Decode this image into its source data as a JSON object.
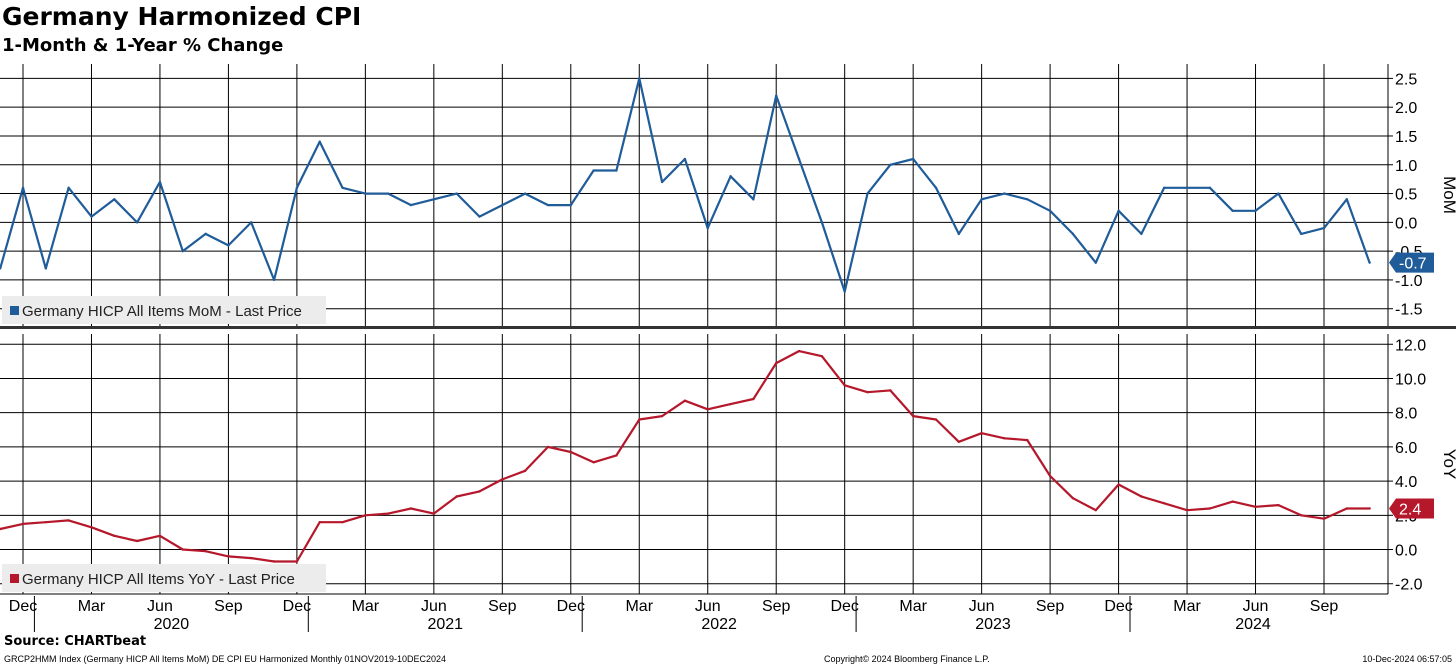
{
  "header": {
    "title": "Germany Harmonized CPI",
    "subtitle": "1-Month & 1-Year % Change"
  },
  "footer": {
    "source": "Source: CHARTbeat",
    "ticker_info": "GRCP2HMM Index (Germany HICP All Items MoM) DE CPI EU Harmonized  Monthly 01NOV2019-10DEC2024",
    "copyright": "Copyright© 2024 Bloomberg Finance L.P.",
    "timestamp": "10-Dec-2024 06:57:05"
  },
  "colors": {
    "mom": "#1f5c99",
    "yoy": "#b5172b",
    "grid": "#000000"
  },
  "chart_data": [
    {
      "type": "line",
      "panel": "top",
      "axis_label": "MoM",
      "legend": "Germany HICP All Items MoM - Last Price",
      "last_value_label": "-0.7",
      "ylim": [
        -1.8,
        2.75
      ],
      "yticks": [
        2.5,
        2.0,
        1.5,
        1.0,
        0.5,
        0.0,
        -0.5,
        -1.0,
        -1.5
      ],
      "ytick_labels": [
        "2.5",
        "2.0",
        "1.5",
        "1.0",
        "0.5",
        "0.0",
        "-0.5",
        "-1.0",
        "-1.5"
      ],
      "x": [
        "2019-11",
        "2019-12",
        "2020-01",
        "2020-02",
        "2020-03",
        "2020-04",
        "2020-05",
        "2020-06",
        "2020-07",
        "2020-08",
        "2020-09",
        "2020-10",
        "2020-11",
        "2020-12",
        "2021-01",
        "2021-02",
        "2021-03",
        "2021-04",
        "2021-05",
        "2021-06",
        "2021-07",
        "2021-08",
        "2021-09",
        "2021-10",
        "2021-11",
        "2021-12",
        "2022-01",
        "2022-02",
        "2022-03",
        "2022-04",
        "2022-05",
        "2022-06",
        "2022-07",
        "2022-08",
        "2022-09",
        "2022-10",
        "2022-11",
        "2022-12",
        "2023-01",
        "2023-02",
        "2023-03",
        "2023-04",
        "2023-05",
        "2023-06",
        "2023-07",
        "2023-08",
        "2023-09",
        "2023-10",
        "2023-11",
        "2023-12",
        "2024-01",
        "2024-02",
        "2024-03",
        "2024-04",
        "2024-05",
        "2024-06",
        "2024-07",
        "2024-08",
        "2024-09",
        "2024-10",
        "2024-11"
      ],
      "values": [
        -0.8,
        0.6,
        -0.8,
        0.6,
        0.1,
        0.4,
        0.0,
        0.7,
        -0.5,
        -0.2,
        -0.4,
        0.0,
        -1.0,
        0.6,
        1.4,
        0.6,
        0.5,
        0.5,
        0.3,
        0.4,
        0.5,
        0.1,
        0.3,
        0.5,
        0.3,
        0.3,
        0.9,
        0.9,
        2.5,
        0.7,
        1.1,
        -0.1,
        0.8,
        0.4,
        2.2,
        1.1,
        0.0,
        -1.2,
        0.5,
        1.0,
        1.1,
        0.6,
        -0.2,
        0.4,
        0.5,
        0.4,
        0.2,
        -0.2,
        -0.7,
        0.2,
        -0.2,
        0.6,
        0.6,
        0.6,
        0.2,
        0.2,
        0.5,
        -0.2,
        -0.1,
        0.4,
        -0.7
      ]
    },
    {
      "type": "line",
      "panel": "bottom",
      "axis_label": "YoY",
      "legend": "Germany HICP All Items YoY - Last Price",
      "last_value_label": "2.4",
      "ylim": [
        -2.6,
        12.6
      ],
      "yticks": [
        12.0,
        10.0,
        8.0,
        6.0,
        4.0,
        2.0,
        0.0,
        -2.0
      ],
      "ytick_labels": [
        "12.0",
        "10.0",
        "8.0",
        "6.0",
        "4.0",
        "2.0",
        "0.0",
        "-2.0"
      ],
      "x": [
        "2019-11",
        "2019-12",
        "2020-01",
        "2020-02",
        "2020-03",
        "2020-04",
        "2020-05",
        "2020-06",
        "2020-07",
        "2020-08",
        "2020-09",
        "2020-10",
        "2020-11",
        "2020-12",
        "2021-01",
        "2021-02",
        "2021-03",
        "2021-04",
        "2021-05",
        "2021-06",
        "2021-07",
        "2021-08",
        "2021-09",
        "2021-10",
        "2021-11",
        "2021-12",
        "2022-01",
        "2022-02",
        "2022-03",
        "2022-04",
        "2022-05",
        "2022-06",
        "2022-07",
        "2022-08",
        "2022-09",
        "2022-10",
        "2022-11",
        "2022-12",
        "2023-01",
        "2023-02",
        "2023-03",
        "2023-04",
        "2023-05",
        "2023-06",
        "2023-07",
        "2023-08",
        "2023-09",
        "2023-10",
        "2023-11",
        "2023-12",
        "2024-01",
        "2024-02",
        "2024-03",
        "2024-04",
        "2024-05",
        "2024-06",
        "2024-07",
        "2024-08",
        "2024-09",
        "2024-10",
        "2024-11"
      ],
      "values": [
        1.2,
        1.5,
        1.6,
        1.7,
        1.3,
        0.8,
        0.5,
        0.8,
        0.0,
        -0.1,
        -0.4,
        -0.5,
        -0.7,
        -0.7,
        1.6,
        1.6,
        2.0,
        2.1,
        2.4,
        2.1,
        3.1,
        3.4,
        4.1,
        4.6,
        6.0,
        5.7,
        5.1,
        5.5,
        7.6,
        7.8,
        8.7,
        8.2,
        8.5,
        8.8,
        10.9,
        11.6,
        11.3,
        9.6,
        9.2,
        9.3,
        7.8,
        7.6,
        6.3,
        6.8,
        6.5,
        6.4,
        4.3,
        3.0,
        2.3,
        3.8,
        3.1,
        2.7,
        2.3,
        2.4,
        2.8,
        2.5,
        2.6,
        2.0,
        1.8,
        2.4,
        2.4
      ]
    }
  ],
  "x_axis": {
    "month_ticks": [
      {
        "x": "2019-12",
        "label": "Dec"
      },
      {
        "x": "2020-03",
        "label": "Mar"
      },
      {
        "x": "2020-06",
        "label": "Jun"
      },
      {
        "x": "2020-09",
        "label": "Sep"
      },
      {
        "x": "2020-12",
        "label": "Dec"
      },
      {
        "x": "2021-03",
        "label": "Mar"
      },
      {
        "x": "2021-06",
        "label": "Jun"
      },
      {
        "x": "2021-09",
        "label": "Sep"
      },
      {
        "x": "2021-12",
        "label": "Dec"
      },
      {
        "x": "2022-03",
        "label": "Mar"
      },
      {
        "x": "2022-06",
        "label": "Jun"
      },
      {
        "x": "2022-09",
        "label": "Sep"
      },
      {
        "x": "2022-12",
        "label": "Dec"
      },
      {
        "x": "2023-03",
        "label": "Mar"
      },
      {
        "x": "2023-06",
        "label": "Jun"
      },
      {
        "x": "2023-09",
        "label": "Sep"
      },
      {
        "x": "2023-12",
        "label": "Dec"
      },
      {
        "x": "2024-03",
        "label": "Mar"
      },
      {
        "x": "2024-06",
        "label": "Jun"
      },
      {
        "x": "2024-09",
        "label": "Sep"
      }
    ],
    "years": [
      {
        "label": "2020",
        "year": 2020
      },
      {
        "label": "2021",
        "year": 2021
      },
      {
        "label": "2022",
        "year": 2022
      },
      {
        "label": "2023",
        "year": 2023
      },
      {
        "label": "2024",
        "year": 2024
      }
    ],
    "grid": true
  }
}
